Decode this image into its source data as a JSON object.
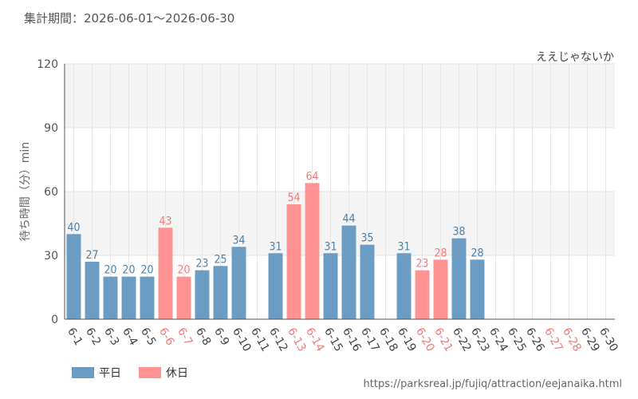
{
  "header": {
    "period": "集計期間：2026-06-01～2026-06-30",
    "ride_name": "ええじゃないか"
  },
  "colors": {
    "weekday": "#6a9cc4",
    "holiday": "#ff9393",
    "weekday_label": "#4d7fa6",
    "holiday_label": "#f07a7a",
    "band": "#f4f4f4"
  },
  "legend": {
    "weekday": "平日",
    "holiday": "休日"
  },
  "source": "https://parksreal.jp/fujiq/attraction/eejanaika.html",
  "chart_data": {
    "type": "bar",
    "ylabel": "待ち時間（分）min",
    "xlabel": "",
    "ylim": [
      0,
      120
    ],
    "yticks": [
      0,
      30,
      60,
      90,
      120
    ],
    "categories": [
      "6-1",
      "6-2",
      "6-3",
      "6-4",
      "6-5",
      "6-6",
      "6-7",
      "6-8",
      "6-9",
      "6-10",
      "6-11",
      "6-12",
      "6-13",
      "6-14",
      "6-15",
      "6-16",
      "6-17",
      "6-18",
      "6-19",
      "6-20",
      "6-21",
      "6-22",
      "6-23",
      "6-24",
      "6-25",
      "6-26",
      "6-27",
      "6-28",
      "6-29",
      "6-30"
    ],
    "values": [
      40,
      27,
      20,
      20,
      20,
      43,
      20,
      23,
      25,
      34,
      null,
      31,
      54,
      64,
      31,
      44,
      35,
      null,
      31,
      23,
      28,
      38,
      28,
      null,
      null,
      null,
      null,
      null,
      null,
      null
    ],
    "holiday": [
      false,
      false,
      false,
      false,
      false,
      true,
      true,
      false,
      false,
      false,
      false,
      false,
      true,
      true,
      false,
      false,
      false,
      false,
      false,
      true,
      true,
      false,
      false,
      false,
      false,
      false,
      true,
      true,
      false,
      false
    ]
  }
}
